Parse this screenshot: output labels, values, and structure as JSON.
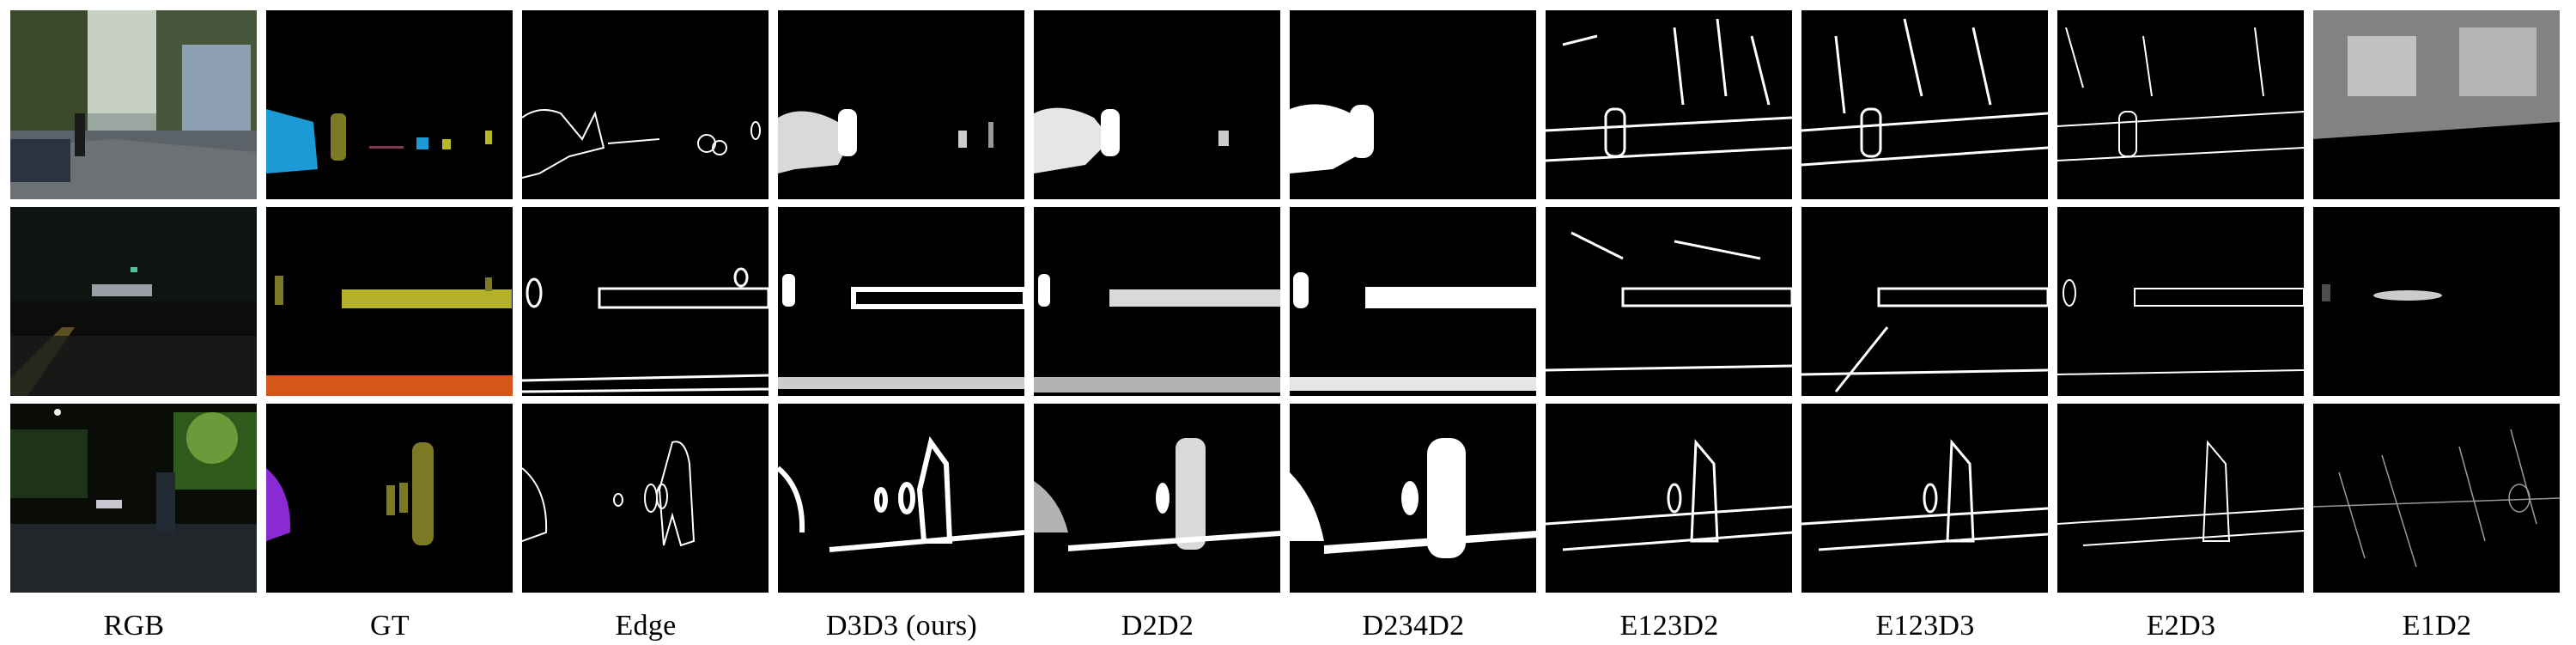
{
  "figure": {
    "columns": [
      "RGB",
      "GT",
      "Edge",
      "D3D3  (ours)",
      "D2D2",
      "D234D2",
      "E123D2",
      "E123D3",
      "E2D3",
      "E1D2"
    ],
    "rows": 3
  }
}
